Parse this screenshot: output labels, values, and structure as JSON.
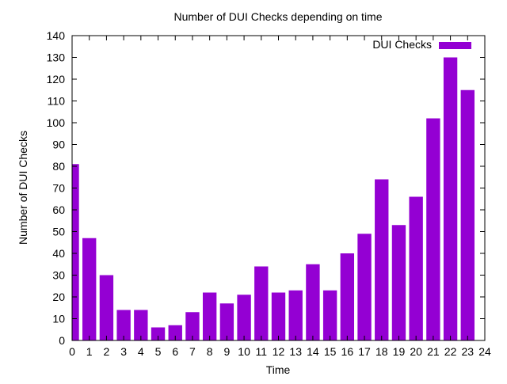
{
  "chart_data": {
    "type": "bar",
    "title": "Number of DUI Checks depending on time",
    "xlabel": "Time",
    "ylabel": "Number of DUI Checks",
    "x": [
      0,
      1,
      2,
      3,
      4,
      5,
      6,
      7,
      8,
      9,
      10,
      11,
      12,
      13,
      14,
      15,
      16,
      17,
      18,
      19,
      20,
      21,
      22,
      23
    ],
    "series": [
      {
        "name": "DUI Checks",
        "color": "#9400d3",
        "values": [
          81,
          47,
          30,
          14,
          14,
          6,
          7,
          13,
          22,
          17,
          21,
          34,
          22,
          23,
          35,
          23,
          40,
          49,
          74,
          53,
          66,
          102,
          130,
          115
        ]
      }
    ],
    "xlim": [
      0,
      24
    ],
    "ylim": [
      0,
      140
    ],
    "xticks": [
      "0",
      "1",
      "2",
      "3",
      "4",
      "5",
      "6",
      "7",
      "8",
      "9",
      "10",
      "11",
      "12",
      "13",
      "14",
      "15",
      "16",
      "17",
      "18",
      "19",
      "20",
      "21",
      "22",
      "23",
      "24"
    ],
    "yticks": [
      "0",
      "10",
      "20",
      "30",
      "40",
      "50",
      "60",
      "70",
      "80",
      "90",
      "100",
      "110",
      "120",
      "130",
      "140"
    ],
    "grid": false,
    "legend_position": "top-right"
  }
}
